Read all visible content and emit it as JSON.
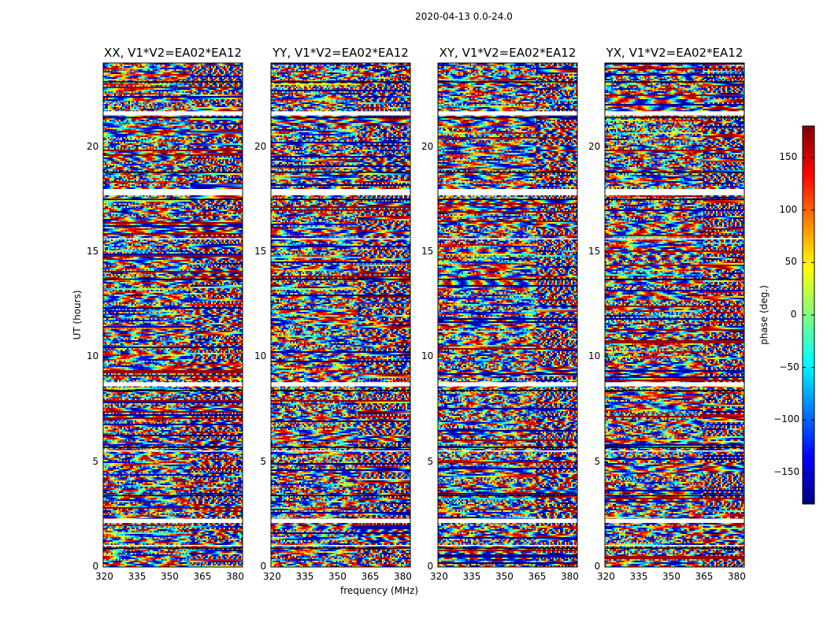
{
  "chart_data": {
    "type": "heatmap",
    "suptitle": "2020-04-13 0.0-24.0",
    "xlabel": "frequency (MHz)",
    "ylabel": "UT (hours)",
    "xlim": [
      320,
      384
    ],
    "ylim": [
      0,
      24
    ],
    "x_ticks": [
      320,
      335,
      350,
      365,
      380
    ],
    "y_ticks": [
      0,
      5,
      10,
      15,
      20
    ],
    "panels": [
      {
        "title": "XX, V1*V2=EA02*EA12",
        "product": "XX"
      },
      {
        "title": "YY, V1*V2=EA02*EA12",
        "product": "YY"
      },
      {
        "title": "XY, V1*V2=EA02*EA12",
        "product": "XY"
      },
      {
        "title": "YX, V1*V2=EA02*EA12",
        "product": "YX"
      }
    ],
    "colorbar": {
      "label": "phase (deg.)",
      "range": [
        -180,
        180
      ],
      "ticks": [
        150,
        100,
        50,
        0,
        -50,
        -100,
        -150
      ],
      "tick_labels": [
        "150",
        "100",
        "50",
        "0",
        "−50",
        "−100",
        "−150"
      ],
      "colormap": "jet",
      "colors": [
        "#00007f",
        "#0000ff",
        "#007fff",
        "#00ffff",
        "#7fff7f",
        "#ffff00",
        "#ff7f00",
        "#ff0000",
        "#7f0000"
      ]
    },
    "flagged_ut_gaps": [
      [
        2.1,
        2.3
      ],
      [
        8.6,
        8.8
      ],
      [
        17.7,
        18.0
      ],
      [
        21.5,
        21.7
      ],
      [
        1.0,
        1.05
      ],
      [
        15.6,
        15.65
      ],
      [
        5.5,
        5.55
      ]
    ]
  }
}
